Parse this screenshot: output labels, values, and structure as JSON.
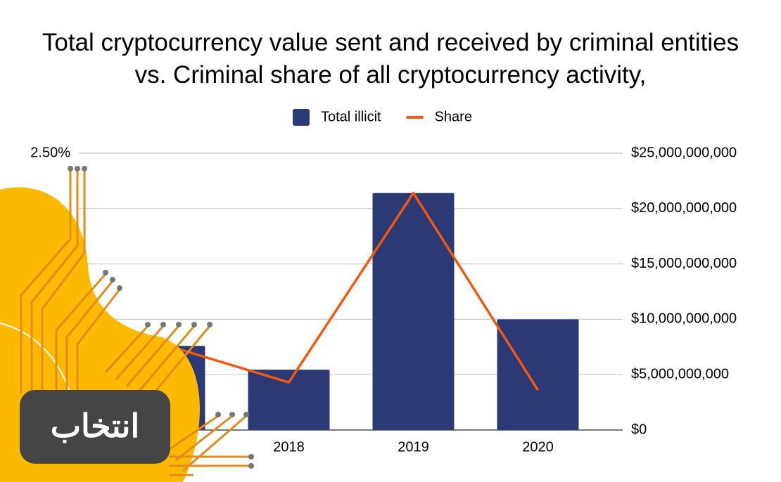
{
  "chart_data": {
    "type": "bar",
    "title": "Total cryptocurrency value sent and received by criminal entities vs. Criminal share of all cryptocurrency activity,",
    "categories": [
      null,
      "2018",
      "2019",
      "2020"
    ],
    "series": [
      {
        "name": "Total illicit",
        "type": "bar",
        "color": "#2b3a74",
        "axis": "y2",
        "values": [
          7600000000,
          5450000000,
          21400000000,
          10000000000
        ]
      },
      {
        "name": "Share",
        "type": "line",
        "color": "#f4580f",
        "axis": "y",
        "values": [
          0.77,
          0.43,
          2.14,
          0.36
        ]
      }
    ],
    "ylim": [
      0,
      2.5
    ],
    "yticks": [
      {
        "value": 2.5,
        "label": "2.50%"
      }
    ],
    "y2lim": [
      0,
      25000000000
    ],
    "y2ticks": [
      {
        "value": 0,
        "label": "$0"
      },
      {
        "value": 5000000000,
        "label": "$5,000,000,000"
      },
      {
        "value": 10000000000,
        "label": "$10,000,000,000"
      },
      {
        "value": 15000000000,
        "label": "$15,000,000,000"
      },
      {
        "value": 20000000000,
        "label": "$20,000,000,000"
      },
      {
        "value": 25000000000,
        "label": "$25,000,000,000"
      }
    ],
    "grid": true,
    "legend": "top",
    "logo_text": "انتخاب"
  }
}
